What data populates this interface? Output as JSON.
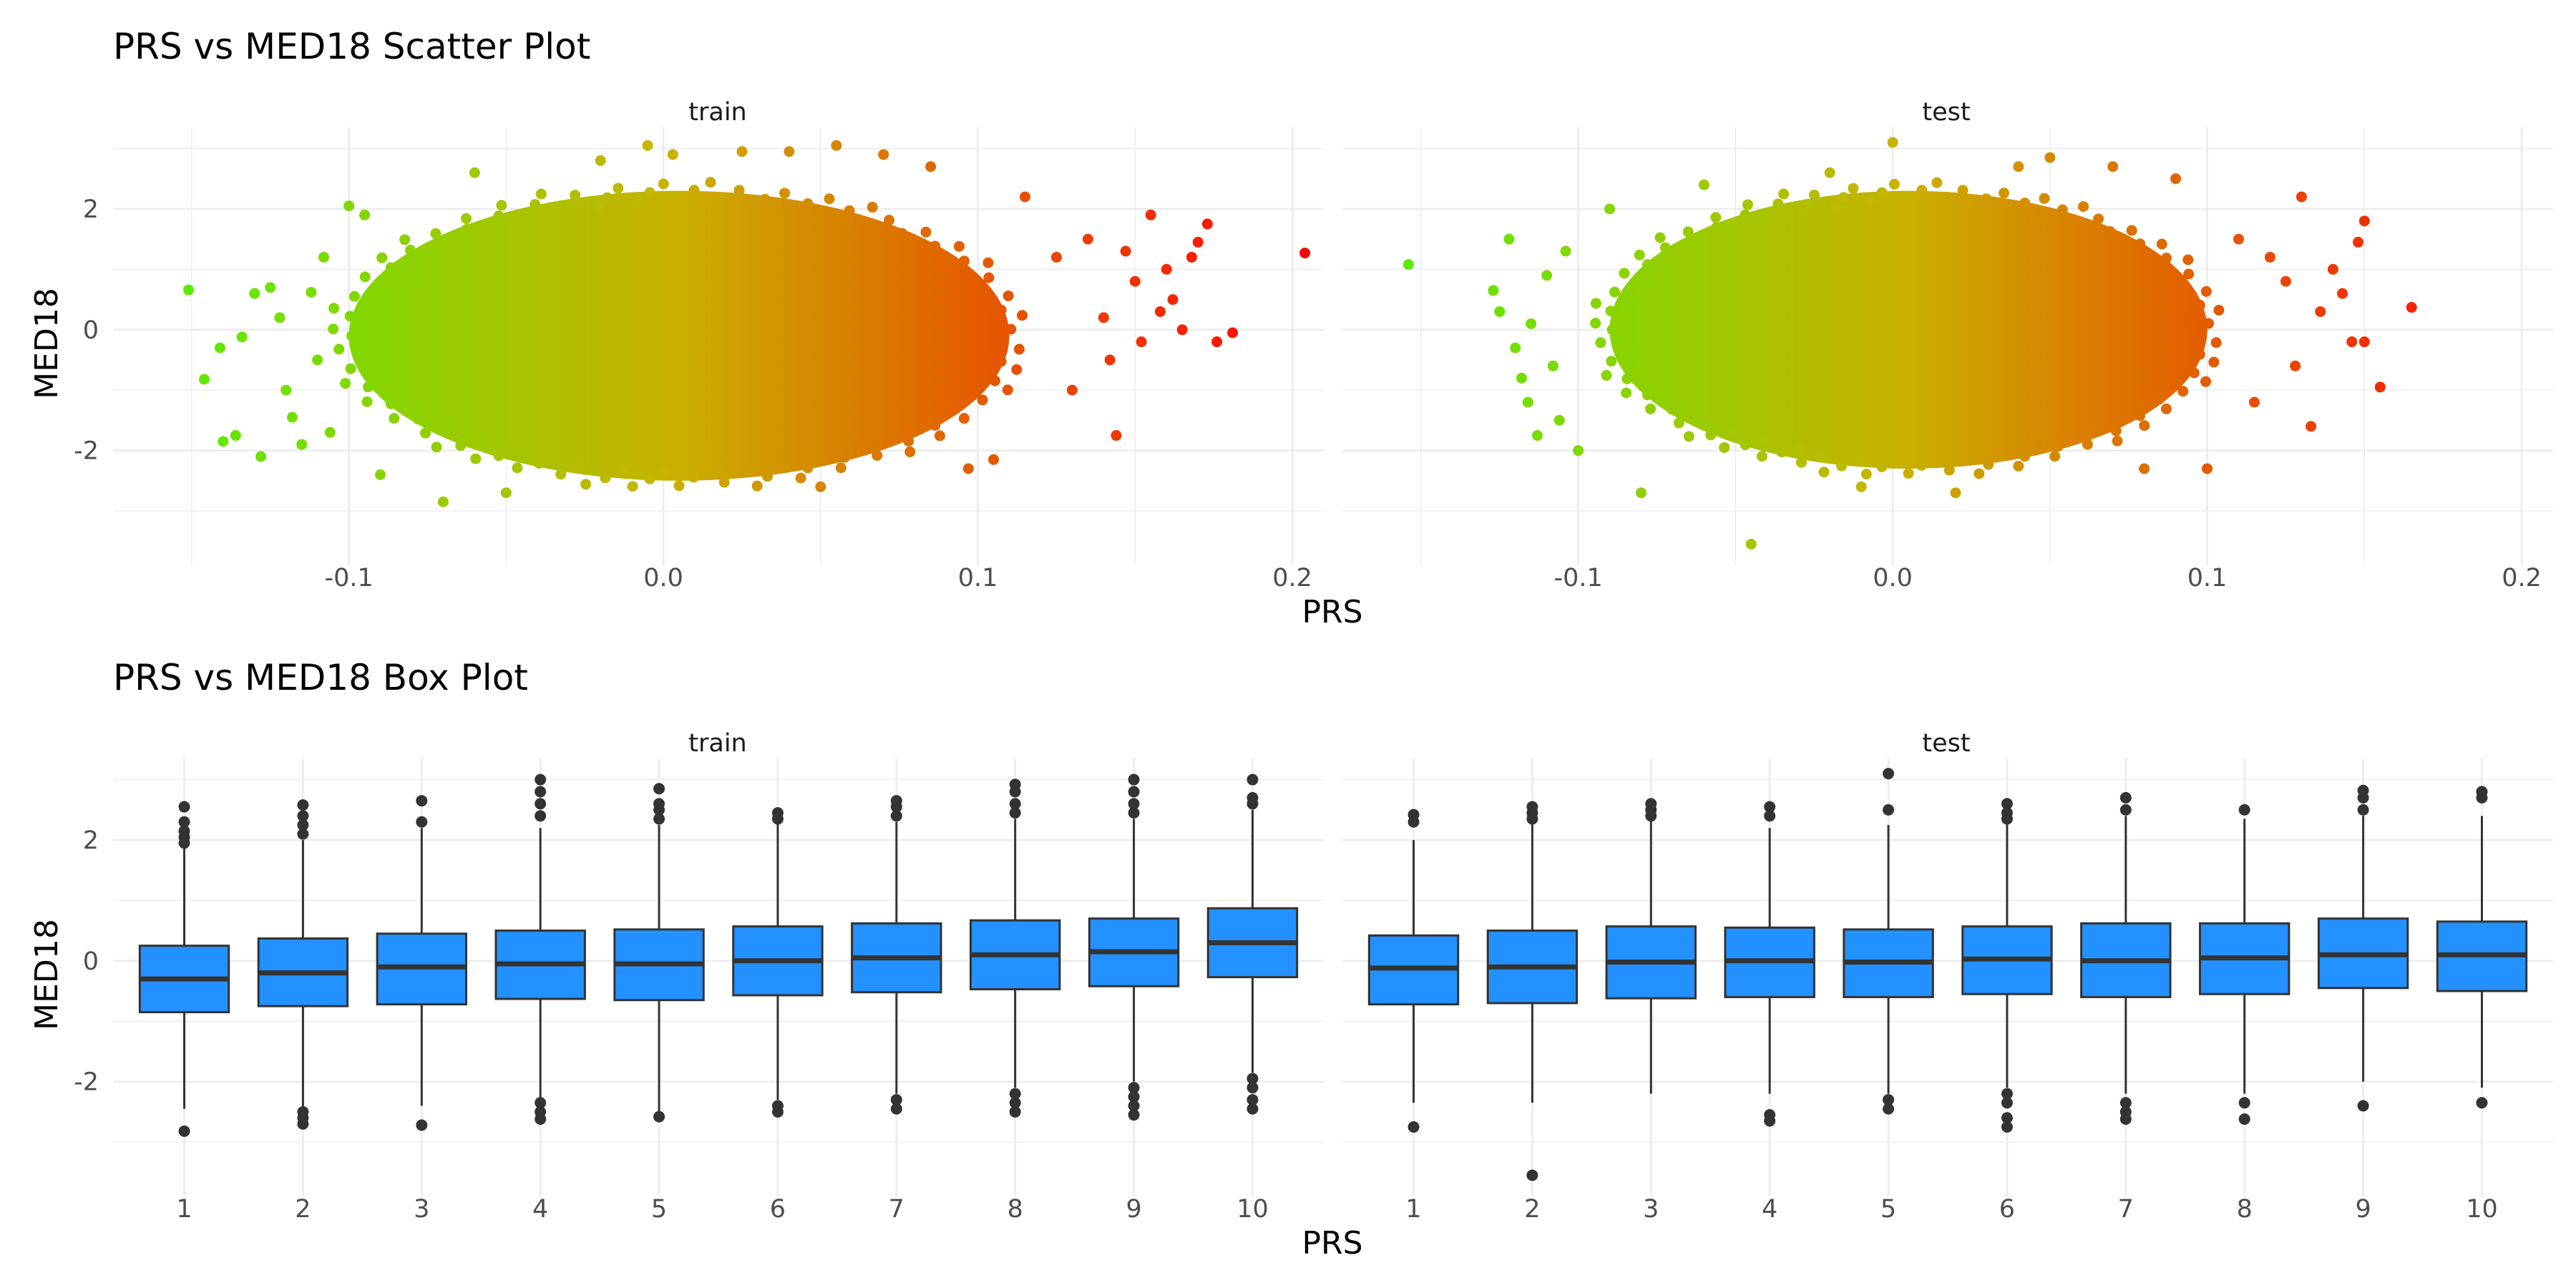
{
  "chart_data": [
    {
      "type": "scatter",
      "title": "PRS vs MED18 Scatter Plot",
      "xlabel": "PRS",
      "ylabel": "MED18",
      "facets": [
        "train",
        "test"
      ],
      "xlim": [
        -0.175,
        0.21
      ],
      "ylim": [
        -3.9,
        3.35
      ],
      "x_ticks": [
        -0.1,
        0.0,
        0.1,
        0.2
      ],
      "x_tick_labels": [
        "-0.1",
        "0.0",
        "0.1",
        "0.2"
      ],
      "y_ticks": [
        -2,
        0,
        2
      ],
      "y_tick_labels": [
        "-2",
        "0",
        "2"
      ],
      "grid": true,
      "color_gradient": {
        "low": "#55ee00",
        "mid": "#c8b400",
        "high": "#ff0000",
        "mapped_to": "PRS"
      },
      "main_cloud": {
        "train": {
          "x_range": [
            -0.1,
            0.11
          ],
          "y_range": [
            -2.5,
            2.3
          ]
        },
        "test": {
          "x_range": [
            -0.09,
            0.1
          ],
          "y_range": [
            -2.3,
            2.3
          ]
        }
      },
      "points": {
        "train": [
          [
            -0.151,
            0.66
          ],
          [
            -0.146,
            -0.82
          ],
          [
            -0.141,
            -0.3
          ],
          [
            -0.14,
            -1.85
          ],
          [
            -0.136,
            -1.75
          ],
          [
            -0.134,
            -0.12
          ],
          [
            -0.13,
            0.6
          ],
          [
            -0.128,
            -2.1
          ],
          [
            -0.125,
            0.7
          ],
          [
            -0.122,
            0.2
          ],
          [
            -0.12,
            -1.0
          ],
          [
            -0.118,
            -1.45
          ],
          [
            -0.115,
            -1.9
          ],
          [
            -0.112,
            0.62
          ],
          [
            -0.11,
            -0.5
          ],
          [
            -0.108,
            1.2
          ],
          [
            -0.106,
            -1.7
          ],
          [
            -0.1,
            2.05
          ],
          [
            -0.095,
            1.9
          ],
          [
            -0.09,
            -2.4
          ],
          [
            -0.07,
            -2.85
          ],
          [
            -0.06,
            2.6
          ],
          [
            -0.05,
            -2.7
          ],
          [
            -0.02,
            2.8
          ],
          [
            -0.005,
            3.05
          ],
          [
            0.003,
            2.9
          ],
          [
            0.025,
            2.95
          ],
          [
            0.04,
            2.95
          ],
          [
            0.05,
            -2.6
          ],
          [
            0.055,
            3.05
          ],
          [
            0.07,
            2.9
          ],
          [
            0.085,
            2.7
          ],
          [
            0.097,
            -2.3
          ],
          [
            0.105,
            -2.15
          ],
          [
            0.115,
            2.2
          ],
          [
            0.125,
            1.2
          ],
          [
            0.13,
            -1.0
          ],
          [
            0.135,
            1.5
          ],
          [
            0.14,
            0.2
          ],
          [
            0.142,
            -0.5
          ],
          [
            0.144,
            -1.75
          ],
          [
            0.147,
            1.3
          ],
          [
            0.15,
            0.8
          ],
          [
            0.152,
            -0.2
          ],
          [
            0.155,
            1.9
          ],
          [
            0.158,
            0.3
          ],
          [
            0.16,
            1.0
          ],
          [
            0.162,
            0.5
          ],
          [
            0.165,
            0.0
          ],
          [
            0.168,
            1.2
          ],
          [
            0.17,
            1.45
          ],
          [
            0.173,
            1.75
          ],
          [
            0.176,
            -0.2
          ],
          [
            0.181,
            -0.05
          ],
          [
            0.204,
            1.27
          ]
        ],
        "test": [
          [
            -0.154,
            1.08
          ],
          [
            -0.127,
            0.65
          ],
          [
            -0.125,
            0.3
          ],
          [
            -0.122,
            1.5
          ],
          [
            -0.12,
            -0.3
          ],
          [
            -0.118,
            -0.8
          ],
          [
            -0.116,
            -1.2
          ],
          [
            -0.115,
            0.1
          ],
          [
            -0.113,
            -1.75
          ],
          [
            -0.11,
            0.9
          ],
          [
            -0.108,
            -0.6
          ],
          [
            -0.106,
            -1.5
          ],
          [
            -0.104,
            1.3
          ],
          [
            -0.1,
            -2.0
          ],
          [
            -0.09,
            2.0
          ],
          [
            -0.08,
            -2.7
          ],
          [
            -0.06,
            2.4
          ],
          [
            -0.045,
            -3.55
          ],
          [
            -0.02,
            2.6
          ],
          [
            -0.01,
            -2.6
          ],
          [
            0.0,
            3.1
          ],
          [
            0.02,
            -2.7
          ],
          [
            0.04,
            2.7
          ],
          [
            0.05,
            2.85
          ],
          [
            0.07,
            2.7
          ],
          [
            0.08,
            -2.3
          ],
          [
            0.09,
            2.5
          ],
          [
            0.1,
            -2.3
          ],
          [
            0.11,
            1.5
          ],
          [
            0.115,
            -1.2
          ],
          [
            0.12,
            1.2
          ],
          [
            0.125,
            0.8
          ],
          [
            0.128,
            -0.6
          ],
          [
            0.13,
            2.2
          ],
          [
            0.133,
            -1.6
          ],
          [
            0.136,
            0.3
          ],
          [
            0.14,
            1.0
          ],
          [
            0.143,
            0.6
          ],
          [
            0.146,
            -0.2
          ],
          [
            0.148,
            1.45
          ],
          [
            0.15,
            1.8
          ],
          [
            0.15,
            -0.2
          ],
          [
            0.155,
            -0.95
          ],
          [
            0.165,
            0.37
          ]
        ]
      }
    },
    {
      "type": "box",
      "title": "PRS vs MED18 Box Plot",
      "xlabel": "PRS",
      "ylabel": "MED18",
      "facets": [
        "train",
        "test"
      ],
      "categories": [
        "1",
        "2",
        "3",
        "4",
        "5",
        "6",
        "7",
        "8",
        "9",
        "10"
      ],
      "ylim": [
        -3.9,
        3.35
      ],
      "y_ticks": [
        -2,
        0,
        2
      ],
      "y_tick_labels": [
        "-2",
        "0",
        "2"
      ],
      "fill": "#2391ff",
      "grid": true,
      "boxes": {
        "train": [
          {
            "q1": -0.85,
            "median": -0.3,
            "q3": 0.25,
            "whisker_low": -2.45,
            "whisker_high": 1.9,
            "outliers": [
              -2.82,
              1.95,
              2.05,
              2.15,
              2.3,
              2.55
            ]
          },
          {
            "q1": -0.75,
            "median": -0.2,
            "q3": 0.37,
            "whisker_low": -2.45,
            "whisker_high": 2.0,
            "outliers": [
              -2.5,
              -2.6,
              -2.7,
              2.1,
              2.25,
              2.4,
              2.58
            ]
          },
          {
            "q1": -0.72,
            "median": -0.1,
            "q3": 0.45,
            "whisker_low": -2.4,
            "whisker_high": 2.2,
            "outliers": [
              -2.72,
              2.3,
              2.65
            ]
          },
          {
            "q1": -0.63,
            "median": -0.05,
            "q3": 0.5,
            "whisker_low": -2.3,
            "whisker_high": 2.2,
            "outliers": [
              -2.35,
              -2.5,
              -2.62,
              2.4,
              2.6,
              2.8,
              3.0
            ]
          },
          {
            "q1": -0.65,
            "median": -0.05,
            "q3": 0.52,
            "whisker_low": -2.5,
            "whisker_high": 2.25,
            "outliers": [
              -2.58,
              2.35,
              2.5,
              2.6,
              2.85
            ]
          },
          {
            "q1": -0.57,
            "median": 0.0,
            "q3": 0.57,
            "whisker_low": -2.3,
            "whisker_high": 2.3,
            "outliers": [
              -2.4,
              -2.5,
              2.35,
              2.45
            ]
          },
          {
            "q1": -0.52,
            "median": 0.05,
            "q3": 0.62,
            "whisker_low": -2.2,
            "whisker_high": 2.3,
            "outliers": [
              -2.3,
              -2.45,
              2.4,
              2.55,
              2.65
            ]
          },
          {
            "q1": -0.47,
            "median": 0.1,
            "q3": 0.67,
            "whisker_low": -2.1,
            "whisker_high": 2.35,
            "outliers": [
              -2.2,
              -2.35,
              -2.5,
              2.45,
              2.6,
              2.8,
              2.92
            ]
          },
          {
            "q1": -0.42,
            "median": 0.15,
            "q3": 0.7,
            "whisker_low": -2.0,
            "whisker_high": 2.35,
            "outliers": [
              -2.1,
              -2.25,
              -2.4,
              -2.55,
              2.45,
              2.6,
              2.8,
              3.0
            ]
          },
          {
            "q1": -0.27,
            "median": 0.3,
            "q3": 0.87,
            "whisker_low": -1.85,
            "whisker_high": 2.5,
            "outliers": [
              -1.95,
              -2.1,
              -2.3,
              -2.45,
              2.6,
              2.7,
              3.0
            ]
          }
        ],
        "test": [
          {
            "q1": -0.72,
            "median": -0.12,
            "q3": 0.42,
            "whisker_low": -2.35,
            "whisker_high": 2.0,
            "outliers": [
              -2.75,
              2.3,
              2.42
            ]
          },
          {
            "q1": -0.7,
            "median": -0.1,
            "q3": 0.5,
            "whisker_low": -2.35,
            "whisker_high": 2.3,
            "outliers": [
              -3.55,
              2.35,
              2.45,
              2.55
            ]
          },
          {
            "q1": -0.62,
            "median": -0.02,
            "q3": 0.57,
            "whisker_low": -2.2,
            "whisker_high": 2.35,
            "outliers": [
              2.4,
              2.5,
              2.6
            ]
          },
          {
            "q1": -0.6,
            "median": 0.0,
            "q3": 0.55,
            "whisker_low": -2.2,
            "whisker_high": 2.2,
            "outliers": [
              -2.55,
              -2.65,
              2.4,
              2.55
            ]
          },
          {
            "q1": -0.6,
            "median": -0.02,
            "q3": 0.52,
            "whisker_low": -2.2,
            "whisker_high": 2.25,
            "outliers": [
              -2.3,
              -2.45,
              2.5,
              3.1
            ]
          },
          {
            "q1": -0.55,
            "median": 0.03,
            "q3": 0.57,
            "whisker_low": -2.1,
            "whisker_high": 2.3,
            "outliers": [
              -2.2,
              -2.35,
              -2.6,
              -2.75,
              2.35,
              2.45,
              2.6
            ]
          },
          {
            "q1": -0.6,
            "median": 0.0,
            "q3": 0.62,
            "whisker_low": -2.2,
            "whisker_high": 2.4,
            "outliers": [
              -2.35,
              -2.5,
              -2.62,
              2.5,
              2.7
            ]
          },
          {
            "q1": -0.55,
            "median": 0.05,
            "q3": 0.62,
            "whisker_low": -2.2,
            "whisker_high": 2.35,
            "outliers": [
              -2.35,
              -2.62,
              2.5
            ]
          },
          {
            "q1": -0.45,
            "median": 0.1,
            "q3": 0.7,
            "whisker_low": -2.0,
            "whisker_high": 2.4,
            "outliers": [
              -2.4,
              2.5,
              2.7,
              2.82
            ]
          },
          {
            "q1": -0.5,
            "median": 0.1,
            "q3": 0.65,
            "whisker_low": -2.1,
            "whisker_high": 2.4,
            "outliers": [
              -2.35,
              2.7,
              2.8
            ]
          }
        ]
      }
    }
  ]
}
